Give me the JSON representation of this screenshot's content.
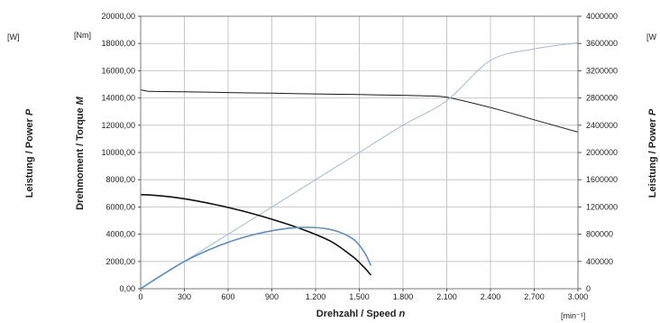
{
  "chart_data": {
    "type": "line",
    "x_axis": {
      "label_prefix": "Drehzahl / Speed ",
      "label_symbol": "n",
      "unit": "[min⁻¹]",
      "range": [
        0,
        3000
      ],
      "ticks": [
        "0",
        "300",
        "600",
        "900",
        "1.200",
        "1.500",
        "1.800",
        "2.100",
        "2.400",
        "2.700",
        "3.000"
      ]
    },
    "y_left": {
      "label_prefix": "Drehmoment / Torque ",
      "label_symbol": "M",
      "unit": "[Nm]",
      "range": [
        0,
        20000
      ],
      "ticks": [
        "0,00",
        "2000,00",
        "4000,00",
        "6000,00",
        "8000,00",
        "10000,00",
        "12000,00",
        "14000,00",
        "16000,00",
        "18000,00",
        "20000,00"
      ]
    },
    "y_right": {
      "range": [
        0,
        4000000
      ],
      "ticks": [
        "0",
        "400000",
        "800000",
        "1200000",
        "1600000",
        "2000000",
        "2400000",
        "2800000",
        "3200000",
        "3600000",
        "4000000"
      ]
    },
    "outer_left": {
      "label_prefix": "Leistung / Power ",
      "label_symbol": "P",
      "unit": "[W]"
    },
    "outer_right": {
      "label_prefix": "Leistung / Power ",
      "label_symbol": "P",
      "unit": "[W"
    },
    "grid": true,
    "legend": "none",
    "series": [
      {
        "axis": "left",
        "color": "#1a1a1a",
        "width": 1.0,
        "x": [
          0,
          50,
          100,
          300,
          600,
          900,
          1200,
          1500,
          1800,
          1950,
          2100,
          2400,
          2700,
          3000
        ],
        "y": [
          14600,
          14500,
          14480,
          14450,
          14400,
          14350,
          14300,
          14250,
          14200,
          14150,
          14050,
          13300,
          12400,
          11500
        ]
      },
      {
        "axis": "right",
        "color": "#9bbcdc",
        "width": 1.0,
        "x": [
          0,
          300,
          600,
          900,
          1200,
          1500,
          1800,
          2100,
          2400,
          2700,
          3000
        ],
        "y": [
          0,
          400000,
          800000,
          1200000,
          1600000,
          2000000,
          2400000,
          2760000,
          3350000,
          3520000,
          3610000
        ]
      },
      {
        "axis": "left",
        "color": "#111111",
        "width": 1.6,
        "x": [
          0,
          100,
          300,
          500,
          700,
          900,
          1100,
          1300,
          1450,
          1530,
          1580
        ],
        "y": [
          6900,
          6850,
          6600,
          6200,
          5700,
          5100,
          4400,
          3500,
          2400,
          1600,
          1000
        ]
      },
      {
        "axis": "right",
        "color": "#5a8fc8",
        "width": 1.6,
        "x": [
          0,
          100,
          300,
          500,
          700,
          900,
          1100,
          1300,
          1450,
          1530,
          1580
        ],
        "y": [
          0,
          140000,
          400000,
          600000,
          750000,
          850000,
          900000,
          870000,
          740000,
          550000,
          340000
        ]
      }
    ]
  }
}
